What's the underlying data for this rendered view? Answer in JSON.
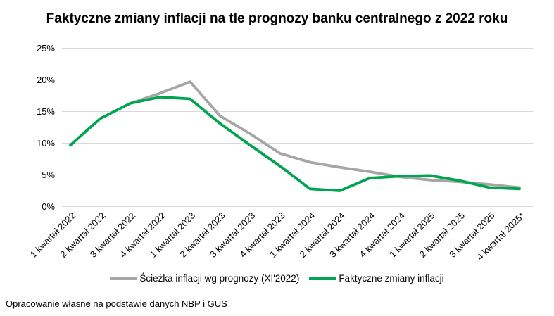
{
  "chart_data": {
    "type": "line",
    "title": "Faktyczne zmiany inflacji na tle prognozy banku centralnego z 2022 roku",
    "categories": [
      "1 kwartał 2022",
      "2 kwartał 2022",
      "3 kwartał 2022",
      "4 kwartał 2022",
      "1 kwartał 2023",
      "2 kwartał 2023",
      "3 kwartał 2023",
      "4 kwartał 2023",
      "1 kwartał 2024",
      "2 kwartał 2024",
      "3 kwartał 2024",
      "4 kwartał 2024",
      "1 kwartał 2025",
      "2 kwartał 2025",
      "3 kwartał 2025",
      "4 kwartał 2025*"
    ],
    "series": [
      {
        "name": "Ścieżka inflacji wg prognozy (XI'2022)",
        "color": "#a6a6a6",
        "values": [
          null,
          null,
          16.3,
          17.9,
          19.7,
          14.3,
          11.5,
          8.4,
          7.0,
          6.2,
          5.5,
          4.7,
          4.2,
          3.9,
          3.5,
          3.0
        ]
      },
      {
        "name": "Faktyczne zmiany inflacji",
        "color": "#00a54f",
        "values": [
          9.7,
          13.9,
          16.3,
          17.3,
          17.0,
          13.1,
          9.7,
          6.4,
          2.8,
          2.5,
          4.5,
          4.8,
          4.9,
          4.1,
          3.0,
          2.8
        ]
      }
    ],
    "ylim": [
      0,
      25
    ],
    "yticks": [
      0,
      5,
      10,
      15,
      20,
      25
    ],
    "ytick_suffix": "%",
    "grid": "horizontal",
    "gridline_color": "#d9d9d9",
    "legend_position": "bottom"
  },
  "footer": {
    "text": "Opracowanie własne na podstawie danych NBP i GUS"
  }
}
